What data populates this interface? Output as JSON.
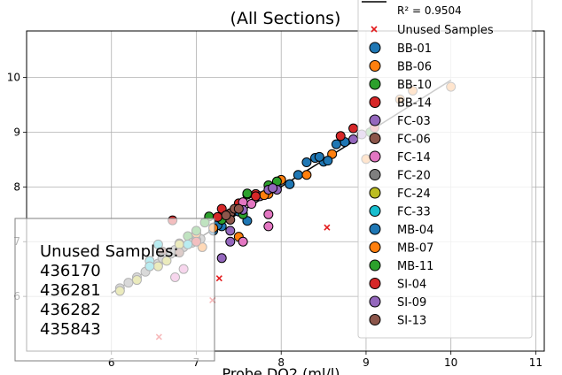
{
  "chart_data": {
    "type": "scatter",
    "title_lines": [
      "(All Sections)"
    ],
    "xlabel": "Probe DO2 (ml/l)",
    "ylabel": "",
    "xlim": [
      5.0,
      11.1
    ],
    "ylim": [
      5.0,
      10.85
    ],
    "xticks": [
      6,
      7,
      8,
      9,
      10,
      11
    ],
    "yticks": [
      6,
      7,
      8,
      9,
      10
    ],
    "grid": true,
    "legend_placement": "right",
    "fit_line": {
      "x": [
        6.0,
        10.0
      ],
      "y": [
        6.06,
        9.95
      ],
      "r2_label": "R² = 0.9504"
    },
    "unused_samples_label": "Unused Samples",
    "unused_points": [
      {
        "x": 7.27,
        "y": 6.33
      },
      {
        "x": 7.19,
        "y": 5.93
      },
      {
        "x": 8.54,
        "y": 7.26
      },
      {
        "x": 6.56,
        "y": 5.26
      }
    ],
    "unused_box": {
      "title": "Unused Samples:",
      "ids": [
        "436170",
        "436281",
        "436282",
        "435843"
      ]
    },
    "series": [
      {
        "name": "BB-01",
        "color": "#1f77b4",
        "points": [
          [
            8.3,
            8.45
          ],
          [
            8.4,
            8.53
          ],
          [
            8.5,
            8.46
          ],
          [
            8.2,
            8.22
          ],
          [
            8.65,
            8.78
          ],
          [
            8.75,
            8.82
          ],
          [
            8.1,
            8.05
          ],
          [
            7.95,
            8.0
          ],
          [
            7.5,
            7.55
          ],
          [
            7.6,
            7.38
          ],
          [
            7.2,
            7.2
          ],
          [
            7.3,
            7.28
          ]
        ]
      },
      {
        "name": "BB-06",
        "color": "#ff7f0e",
        "points": [
          [
            8.0,
            8.13
          ],
          [
            8.6,
            8.6
          ],
          [
            8.3,
            8.22
          ],
          [
            7.85,
            7.87
          ],
          [
            7.5,
            7.09
          ],
          [
            7.07,
            6.9
          ],
          [
            9.0,
            8.51
          ],
          [
            9.4,
            9.6
          ],
          [
            10.0,
            9.83
          ],
          [
            9.55,
            9.76
          ]
        ]
      },
      {
        "name": "BB-10",
        "color": "#2ca02c",
        "points": [
          [
            7.6,
            7.86
          ],
          [
            7.85,
            8.03
          ],
          [
            7.95,
            8.1
          ],
          [
            7.55,
            7.5
          ],
          [
            7.4,
            7.5
          ],
          [
            7.15,
            7.46
          ],
          [
            7.1,
            7.35
          ],
          [
            6.9,
            7.1
          ],
          [
            9.05,
            9.0
          ]
        ]
      },
      {
        "name": "BB-14",
        "color": "#d62728",
        "points": [
          [
            8.7,
            8.93
          ],
          [
            8.85,
            9.07
          ],
          [
            7.7,
            7.87
          ],
          [
            7.5,
            7.7
          ],
          [
            7.3,
            7.6
          ],
          [
            6.72,
            7.39
          ],
          [
            9.1,
            9.08
          ]
        ]
      },
      {
        "name": "FC-03",
        "color": "#9467bd",
        "points": [
          [
            8.85,
            8.87
          ],
          [
            8.95,
            8.96
          ],
          [
            7.75,
            7.83
          ],
          [
            7.95,
            7.95
          ],
          [
            7.3,
            6.7
          ],
          [
            7.4,
            7.2
          ]
        ]
      },
      {
        "name": "FC-06",
        "color": "#8c564b",
        "points": [
          [
            7.4,
            7.52
          ],
          [
            7.45,
            7.6
          ],
          [
            6.8,
            6.97
          ],
          [
            6.6,
            6.82
          ],
          [
            7.2,
            7.26
          ]
        ]
      },
      {
        "name": "FC-14",
        "color": "#e377c2",
        "points": [
          [
            7.55,
            7.72
          ],
          [
            7.65,
            7.69
          ],
          [
            7.85,
            7.5
          ],
          [
            7.85,
            7.28
          ],
          [
            6.75,
            6.35
          ],
          [
            6.85,
            6.5
          ],
          [
            7.55,
            7.0
          ]
        ]
      },
      {
        "name": "FC-20",
        "color": "#7f7f7f",
        "points": [
          [
            6.1,
            6.15
          ],
          [
            6.2,
            6.25
          ],
          [
            6.3,
            6.35
          ],
          [
            6.4,
            6.45
          ],
          [
            6.45,
            6.55
          ],
          [
            6.55,
            6.6
          ],
          [
            6.6,
            6.7
          ],
          [
            6.7,
            6.78
          ],
          [
            6.75,
            6.85
          ],
          [
            6.85,
            6.9
          ],
          [
            6.95,
            6.98
          ],
          [
            7.05,
            7.05
          ]
        ]
      },
      {
        "name": "FC-24",
        "color": "#bcbd22",
        "points": [
          [
            6.1,
            6.1
          ],
          [
            6.3,
            6.3
          ],
          [
            6.55,
            6.55
          ],
          [
            6.65,
            6.65
          ],
          [
            6.8,
            6.95
          ]
        ]
      },
      {
        "name": "FC-33",
        "color": "#17becf",
        "points": [
          [
            6.55,
            6.95
          ],
          [
            6.45,
            6.65
          ],
          [
            6.45,
            6.55
          ],
          [
            6.9,
            6.95
          ],
          [
            7.0,
            7.03
          ]
        ]
      },
      {
        "name": "MB-04",
        "color": "#1f77b4",
        "points": [
          [
            8.45,
            8.55
          ],
          [
            8.55,
            8.48
          ],
          [
            8.1,
            8.05
          ],
          [
            7.25,
            7.3
          ]
        ]
      },
      {
        "name": "MB-07",
        "color": "#ff7f0e",
        "points": [
          [
            7.0,
            7.15
          ],
          [
            7.2,
            7.25
          ],
          [
            7.8,
            7.85
          ]
        ]
      },
      {
        "name": "MB-11",
        "color": "#2ca02c",
        "points": [
          [
            7.6,
            7.88
          ],
          [
            7.0,
            7.2
          ],
          [
            7.3,
            7.4
          ]
        ]
      },
      {
        "name": "SI-04",
        "color": "#d62728",
        "points": [
          [
            7.7,
            7.83
          ],
          [
            7.25,
            7.45
          ],
          [
            7.0,
            7.0
          ]
        ]
      },
      {
        "name": "SI-09",
        "color": "#9467bd",
        "points": [
          [
            7.85,
            7.95
          ],
          [
            7.9,
            7.98
          ],
          [
            7.55,
            7.58
          ],
          [
            7.4,
            7.0
          ]
        ]
      },
      {
        "name": "SI-13",
        "color": "#8c564b",
        "points": [
          [
            7.4,
            7.4
          ],
          [
            7.5,
            7.6
          ],
          [
            7.35,
            7.48
          ],
          [
            6.8,
            6.8
          ]
        ]
      }
    ]
  }
}
